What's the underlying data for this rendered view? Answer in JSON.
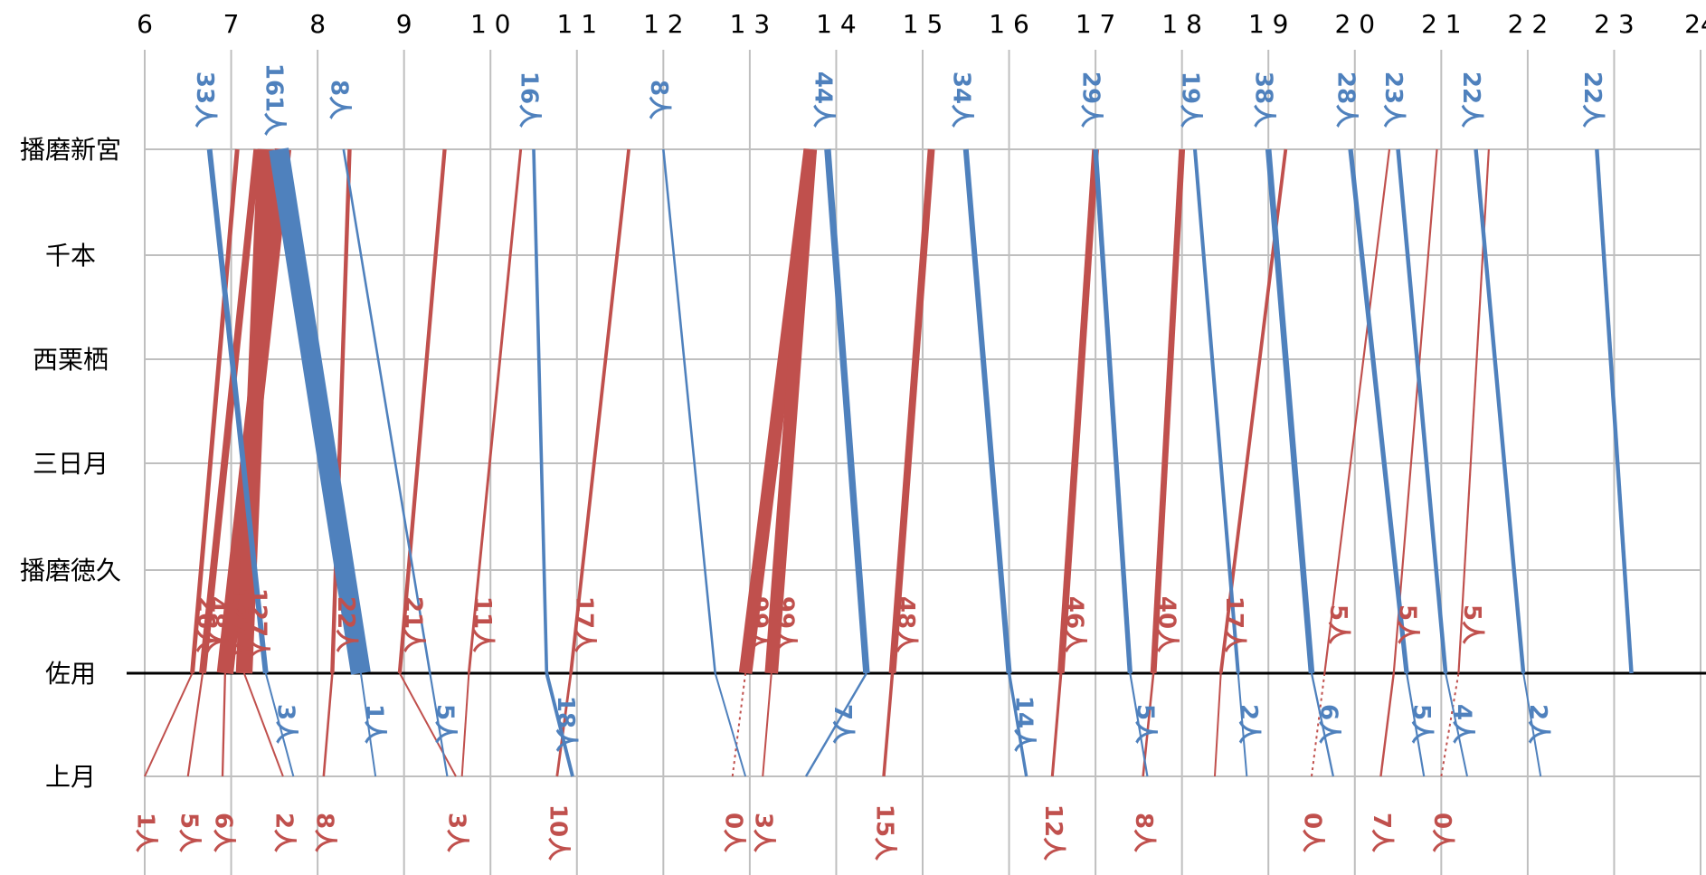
{
  "chart_data": {
    "type": "line",
    "x_axis": {
      "range": [
        6,
        24
      ],
      "tick_labels": [
        "6",
        "7",
        "8",
        "9",
        "1 0",
        "1 1",
        "1 2",
        "1 3",
        "1 4",
        "1 5",
        "1 6",
        "1 7",
        "1 8",
        "1 9",
        "2 0",
        "2 1",
        "2 2",
        "2 3",
        "24"
      ]
    },
    "stations": [
      "播磨新宮",
      "千本",
      "西栗栖",
      "三日月",
      "播磨徳久",
      "佐用",
      "上月"
    ],
    "colors": {
      "up": "#c0504d",
      "down": "#4f81bd",
      "axis": "#000000",
      "grid": "#bfbfbf"
    },
    "up_trains": [
      {
        "t0": 6.0,
        "t1": 6.55,
        "t2": 7.07,
        "seg1": "1人",
        "seg2": "26人"
      },
      {
        "t0": 6.5,
        "t1": 6.67,
        "t2": 7.3,
        "seg1": "5人",
        "seg2": "48人"
      },
      {
        "t0": 6.9,
        "t1": 6.93,
        "t2": 7.6,
        "seg1": "6人",
        "seg2": "127人"
      },
      {
        "t0": 7.6,
        "t1": 7.15,
        "t2": 7.4,
        "seg1": "2人",
        "seg2": "127人"
      },
      {
        "t0": 8.07,
        "t1": 8.17,
        "t2": 8.37,
        "seg1": "8人",
        "seg2": "22人"
      },
      {
        "t0": 9.6,
        "t1": 8.95,
        "t2": 9.47,
        "seg1": "3人",
        "seg2": "21人"
      },
      {
        "t0": 9.67,
        "t1": 9.75,
        "t2": 10.35,
        "seg1": "",
        "seg2": "11人"
      },
      {
        "t0": 10.77,
        "t1": 10.93,
        "t2": 11.6,
        "seg1": "10人",
        "seg2": "17人"
      },
      {
        "t0": 12.8,
        "t1": 12.95,
        "t2": 13.7,
        "seg1": "0人",
        "seg2": "99人"
      },
      {
        "t0": 13.15,
        "t1": 13.25,
        "t2": 13.7,
        "seg1": "3人",
        "seg2": "99人"
      },
      {
        "t0": 14.55,
        "t1": 14.65,
        "t2": 15.1,
        "seg1": "15人",
        "seg2": "48人"
      },
      {
        "t0": 16.5,
        "t1": 16.6,
        "t2": 17.0,
        "seg1": "12人",
        "seg2": "46人"
      },
      {
        "t0": 17.55,
        "t1": 17.67,
        "t2": 18.0,
        "seg1": "8人",
        "seg2": "40人"
      },
      {
        "t0": 18.38,
        "t1": 18.45,
        "t2": 19.2,
        "seg1": "",
        "seg2": "17人"
      },
      {
        "t0": 19.5,
        "t1": 19.65,
        "t2": 20.4,
        "seg1": "0人",
        "seg2": "5人"
      },
      {
        "t0": 20.3,
        "t1": 20.45,
        "t2": 20.95,
        "seg1": "7人",
        "seg2": "5人"
      },
      {
        "t0": 21.0,
        "t1": 21.2,
        "t2": 21.55,
        "seg1": "0人",
        "seg2": "5人"
      }
    ],
    "down_trains": [
      {
        "t0": 6.75,
        "t1": 7.4,
        "t2": 7.72,
        "seg1": "33人",
        "seg2": "3人"
      },
      {
        "t0": 7.55,
        "t1": 8.5,
        "t2": 8.67,
        "seg1": "161人",
        "seg2": "1人"
      },
      {
        "t0": 8.3,
        "t1": 9.3,
        "t2": 9.5,
        "seg1": "8人",
        "seg2": "5人"
      },
      {
        "t0": 10.5,
        "t1": 10.65,
        "t2": 10.95,
        "seg1": "16人",
        "seg2": "18人"
      },
      {
        "t0": 12.0,
        "t1": 12.6,
        "t2": 12.95,
        "seg1": "8人",
        "seg2": ""
      },
      {
        "t0": 13.9,
        "t1": 14.35,
        "t2": 13.65,
        "seg1": "44人",
        "seg2": "7人"
      },
      {
        "t0": 15.5,
        "t1": 16.0,
        "t2": 16.2,
        "seg1": "34人",
        "seg2": "14人"
      },
      {
        "t0": 17.0,
        "t1": 17.4,
        "t2": 17.6,
        "seg1": "29人",
        "seg2": "5人"
      },
      {
        "t0": 18.15,
        "t1": 18.65,
        "t2": 18.75,
        "seg1": "19人",
        "seg2": "2人"
      },
      {
        "t0": 19.0,
        "t1": 19.5,
        "t2": 19.75,
        "seg1": "38人",
        "seg2": "6人"
      },
      {
        "t0": 19.95,
        "t1": 20.6,
        "t2": 20.8,
        "seg1": "28人",
        "seg2": "5人"
      },
      {
        "t0": 20.5,
        "t1": 21.05,
        "t2": 21.3,
        "seg1": "23人",
        "seg2": "4人"
      },
      {
        "t0": 21.4,
        "t1": 21.95,
        "t2": 22.15,
        "seg1": "22人",
        "seg2": "2人"
      },
      {
        "t0": 22.8,
        "t1": 23.2,
        "t2": null,
        "seg1": "22人",
        "seg2": ""
      }
    ]
  }
}
